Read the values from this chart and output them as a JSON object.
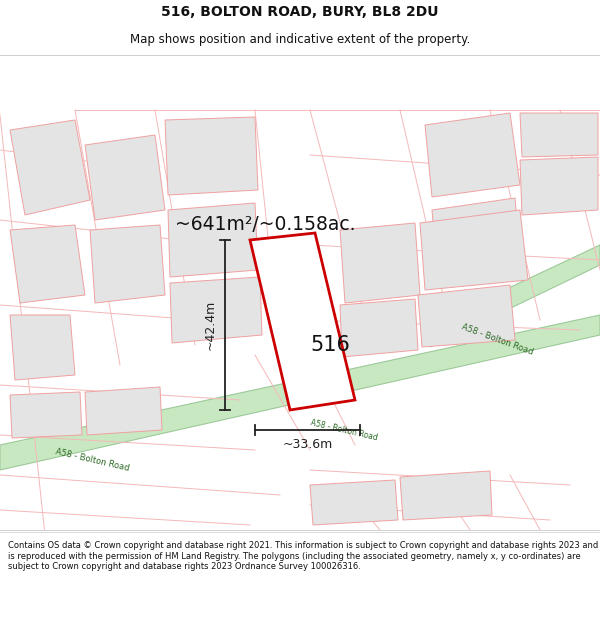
{
  "title_line1": "516, BOLTON ROAD, BURY, BL8 2DU",
  "title_line2": "Map shows position and indicative extent of the property.",
  "footer_text": "Contains OS data © Crown copyright and database right 2021. This information is subject to Crown copyright and database rights 2023 and is reproduced with the permission of HM Land Registry. The polygons (including the associated geometry, namely x, y co-ordinates) are subject to Crown copyright and database rights 2023 Ordnance Survey 100026316.",
  "area_label": "~641m²/~0.158ac.",
  "width_label": "~33.6m",
  "height_label": "~42.4m",
  "plot_number": "516",
  "road_color": "#c8e8c2",
  "road_border": "#9dc99a",
  "building_fill": "#e4e4e4",
  "building_line": "#f0a0a0",
  "street_color": "#f5b8b8",
  "plot_line": "#cc0000",
  "dim_line_color": "#222222"
}
